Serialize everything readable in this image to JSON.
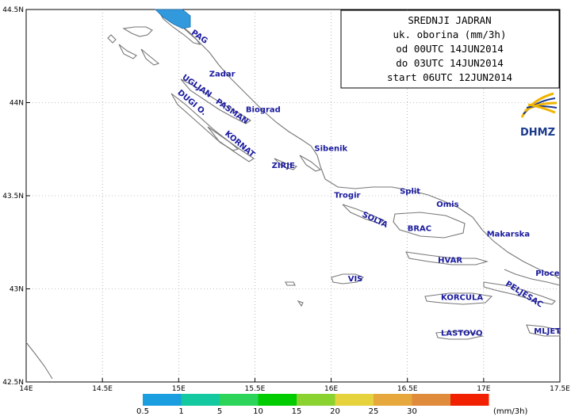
{
  "title_box": {
    "lines": [
      "SREDNJI JADRAN",
      "uk. oborina (mm/3h)",
      "od 00UTC 14JUN2014",
      "do 03UTC 14JUN2014",
      "start 06UTC 12JUN2014"
    ]
  },
  "logo": {
    "text": "DHMZ",
    "icon": "dhmz-sun-swirl-icon"
  },
  "axes": {
    "x_ticks": [
      {
        "value": 14.0,
        "label": "14E"
      },
      {
        "value": 14.5,
        "label": "14.5E"
      },
      {
        "value": 15.0,
        "label": "15E"
      },
      {
        "value": 15.5,
        "label": "15.5E"
      },
      {
        "value": 16.0,
        "label": "16E"
      },
      {
        "value": 16.5,
        "label": "16.5E"
      },
      {
        "value": 17.0,
        "label": "17E"
      },
      {
        "value": 17.5,
        "label": "17.5E"
      }
    ],
    "y_ticks": [
      {
        "value": 44.5,
        "label": "44.5N"
      },
      {
        "value": 44.0,
        "label": "44N"
      },
      {
        "value": 43.5,
        "label": "43.5N"
      },
      {
        "value": 43.0,
        "label": "43N"
      },
      {
        "value": 42.5,
        "label": "42.5N"
      }
    ],
    "lon_range": [
      14.0,
      17.5
    ],
    "lat_range": [
      42.5,
      44.5
    ],
    "grid": "dotted"
  },
  "places": [
    {
      "name": "PAG",
      "lon": 15.08,
      "lat": 44.37,
      "rotate": 35
    },
    {
      "name": "Zadar",
      "lon": 15.2,
      "lat": 44.14,
      "rotate": 0
    },
    {
      "name": "UGLJAN",
      "lon": 15.02,
      "lat": 44.13,
      "rotate": 35
    },
    {
      "name": "PASMAN",
      "lon": 15.24,
      "lat": 44.0,
      "rotate": 35
    },
    {
      "name": "Biograd",
      "lon": 15.44,
      "lat": 43.95,
      "rotate": 0
    },
    {
      "name": "DUGI O.",
      "lon": 14.99,
      "lat": 44.05,
      "rotate": 40
    },
    {
      "name": "KORNAT",
      "lon": 15.3,
      "lat": 43.83,
      "rotate": 40
    },
    {
      "name": "Sibenik",
      "lon": 15.89,
      "lat": 43.74,
      "rotate": 0
    },
    {
      "name": "ZIRJE",
      "lon": 15.61,
      "lat": 43.65,
      "rotate": 0
    },
    {
      "name": "Trogir",
      "lon": 16.02,
      "lat": 43.49,
      "rotate": 0
    },
    {
      "name": "Split",
      "lon": 16.45,
      "lat": 43.51,
      "rotate": 0
    },
    {
      "name": "Omis",
      "lon": 16.69,
      "lat": 43.44,
      "rotate": 0
    },
    {
      "name": "SOLTA",
      "lon": 16.2,
      "lat": 43.39,
      "rotate": 25
    },
    {
      "name": "BRAC",
      "lon": 16.5,
      "lat": 43.31,
      "rotate": 0
    },
    {
      "name": "Makarska",
      "lon": 17.02,
      "lat": 43.28,
      "rotate": 0
    },
    {
      "name": "HVAR",
      "lon": 16.7,
      "lat": 43.14,
      "rotate": 0
    },
    {
      "name": "Ploce",
      "lon": 17.34,
      "lat": 43.07,
      "rotate": 0
    },
    {
      "name": "VIS",
      "lon": 16.11,
      "lat": 43.04,
      "rotate": 0
    },
    {
      "name": "PELJESAC",
      "lon": 17.14,
      "lat": 43.02,
      "rotate": 32
    },
    {
      "name": "KORCULA",
      "lon": 16.72,
      "lat": 42.94,
      "rotate": 0
    },
    {
      "name": "LASTOVO",
      "lon": 16.72,
      "lat": 42.75,
      "rotate": 0
    },
    {
      "name": "MLJET",
      "lon": 17.33,
      "lat": 42.76,
      "rotate": 0
    }
  ],
  "precip_area": {
    "color": "#3399dd",
    "outline": "#1a6fb0",
    "lon": 15.0,
    "lat": 44.47
  },
  "legend": {
    "unit": "(mm/3h)",
    "labels": [
      "0.5",
      "1",
      "5",
      "10",
      "15",
      "20",
      "25",
      "30"
    ],
    "colors": [
      "#1a9ee0",
      "#14c8a0",
      "#2cd45a",
      "#00cc00",
      "#8ad230",
      "#e6d23c",
      "#e6a83c",
      "#e08a3c",
      "#f02000"
    ]
  }
}
